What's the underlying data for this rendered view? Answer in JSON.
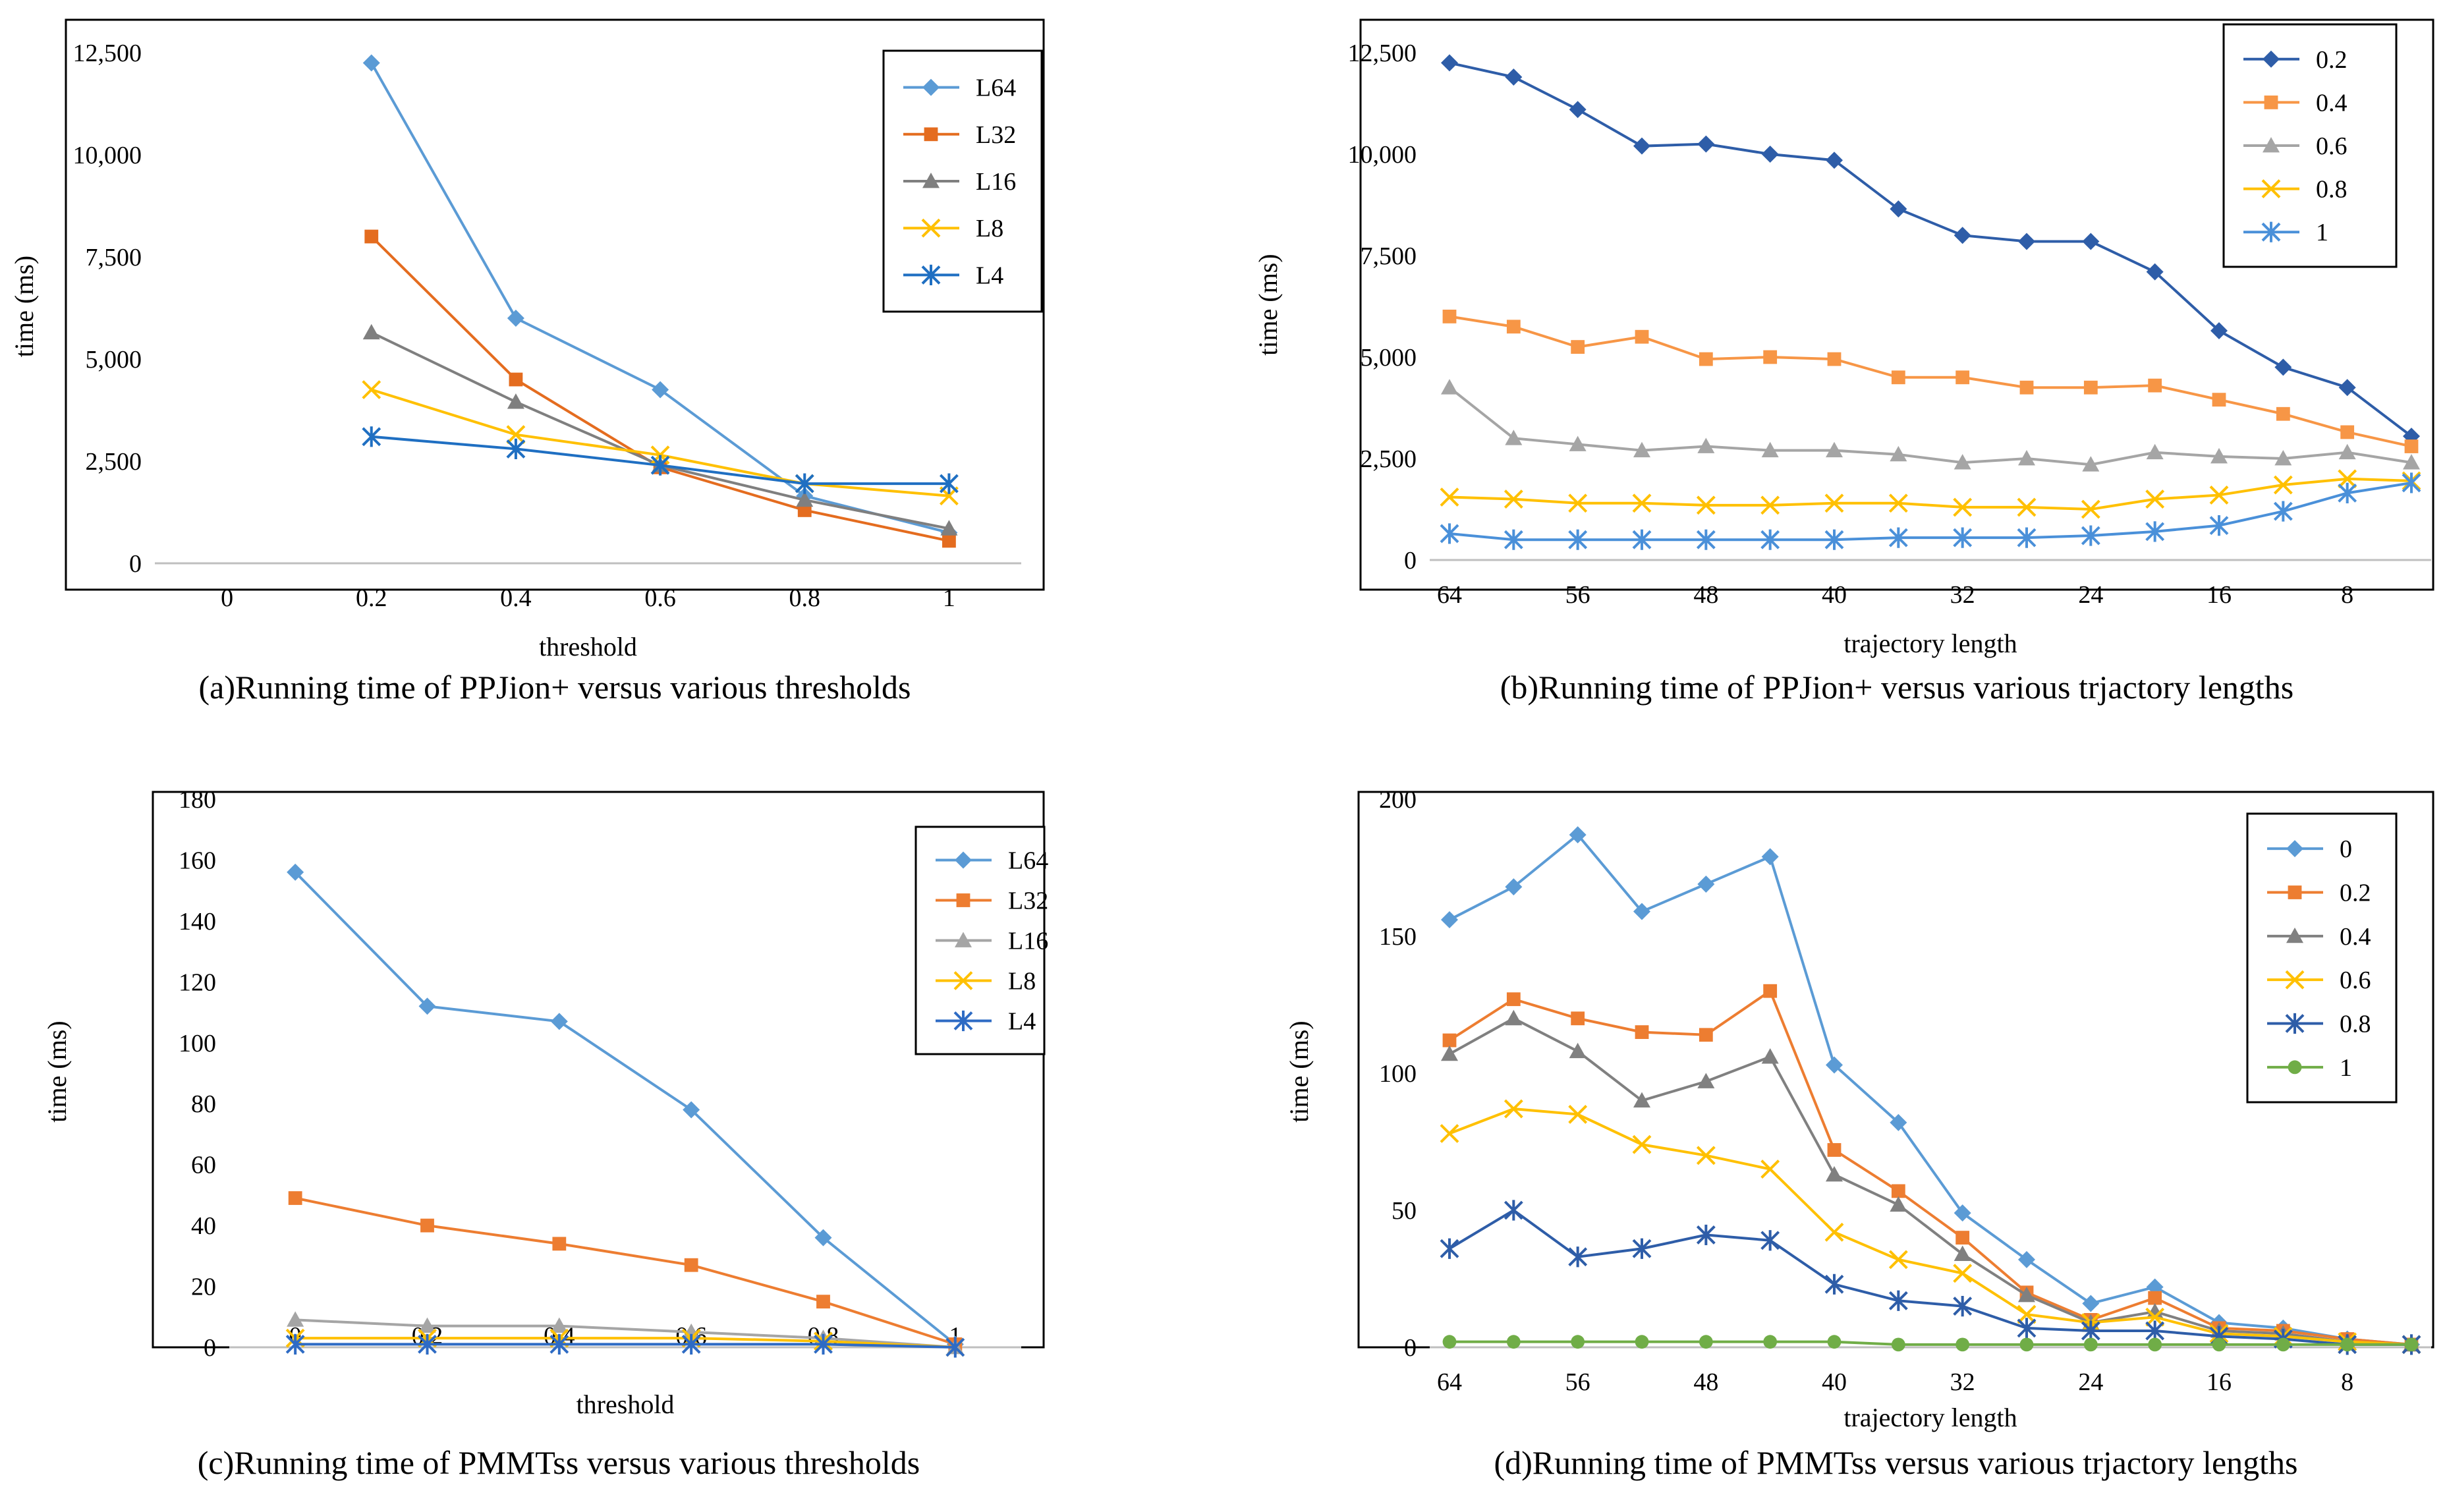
{
  "chart_data": [
    {
      "id": "a",
      "type": "line",
      "caption": "(a)Running time of PPJion+ versus various thresholds",
      "xlabel": "threshold",
      "ylabel": "time (ms)",
      "categories": [
        "0",
        "0.2",
        "0.4",
        "0.6",
        "0.8",
        "1"
      ],
      "ylim": [
        0,
        12500
      ],
      "yticks": [
        "0",
        "2,500",
        "5,000",
        "7,500",
        "10,000",
        "12,500"
      ],
      "legend_position": "top-right",
      "series": [
        {
          "name": "L64",
          "color": "#5b9bd5",
          "marker": "diamond",
          "values": [
            null,
            12250,
            6000,
            4250,
            1650,
            750
          ]
        },
        {
          "name": "L32",
          "color": "#e46c1f",
          "marker": "square",
          "values": [
            null,
            8000,
            4500,
            2350,
            1300,
            550
          ]
        },
        {
          "name": "L16",
          "color": "#7f7f7f",
          "marker": "triangle",
          "values": [
            null,
            5650,
            3950,
            2400,
            1550,
            850
          ]
        },
        {
          "name": "L8",
          "color": "#ffc000",
          "marker": "x",
          "values": [
            null,
            4250,
            3150,
            2650,
            1950,
            1650
          ]
        },
        {
          "name": "L4",
          "color": "#1f6fc2",
          "marker": "star",
          "values": [
            null,
            3100,
            2800,
            2400,
            1950,
            1950
          ]
        }
      ]
    },
    {
      "id": "b",
      "type": "line",
      "caption": "(b)Running time of PPJion+ versus various trjactory lengths",
      "xlabel": "trajectory length",
      "ylabel": "time (ms)",
      "categories": [
        "64",
        "60",
        "56",
        "52",
        "48",
        "44",
        "40",
        "36",
        "32",
        "28",
        "24",
        "20",
        "16",
        "12",
        "8",
        "4"
      ],
      "tick_labels": [
        "64",
        "56",
        "48",
        "40",
        "32",
        "24",
        "16",
        "8"
      ],
      "ylim": [
        0,
        12500
      ],
      "yticks": [
        "0",
        "2,500",
        "5,000",
        "7,500",
        "10,000",
        "12,500"
      ],
      "legend_position": "top-right",
      "series": [
        {
          "name": "0.2",
          "color": "#2e5da8",
          "marker": "diamond",
          "values": [
            12250,
            11900,
            11100,
            10200,
            10250,
            10000,
            9850,
            8650,
            8000,
            7850,
            7850,
            7100,
            5650,
            4750,
            4250,
            3050
          ]
        },
        {
          "name": "0.4",
          "color": "#f79646",
          "marker": "square",
          "values": [
            6000,
            5750,
            5250,
            5500,
            4950,
            5000,
            4950,
            4500,
            4500,
            4250,
            4250,
            4300,
            3950,
            3600,
            3150,
            2800
          ]
        },
        {
          "name": "0.6",
          "color": "#a5a5a5",
          "marker": "triangle",
          "values": [
            4250,
            3000,
            2850,
            2700,
            2800,
            2700,
            2700,
            2600,
            2400,
            2500,
            2350,
            2650,
            2550,
            2500,
            2650,
            2400
          ]
        },
        {
          "name": "0.8",
          "color": "#ffc000",
          "marker": "x",
          "values": [
            1550,
            1500,
            1400,
            1400,
            1350,
            1350,
            1400,
            1400,
            1300,
            1300,
            1250,
            1500,
            1600,
            1850,
            2000,
            1950
          ]
        },
        {
          "name": "1",
          "color": "#4a90d9",
          "marker": "star",
          "values": [
            650,
            500,
            500,
            500,
            500,
            500,
            500,
            550,
            550,
            550,
            600,
            700,
            850,
            1200,
            1650,
            1900
          ]
        }
      ]
    },
    {
      "id": "c",
      "type": "line",
      "caption": "(c)Running time of PMMTss versus various thresholds",
      "xlabel": "threshold",
      "ylabel": "time (ms)",
      "categories": [
        "0",
        "0.2",
        "0.4",
        "0.6",
        "0.8",
        "1"
      ],
      "ylim": [
        0,
        180
      ],
      "yticks": [
        "0",
        "20",
        "40",
        "60",
        "80",
        "100",
        "120",
        "140",
        "160",
        "180"
      ],
      "legend_position": "top-right",
      "series": [
        {
          "name": "L64",
          "color": "#5b9bd5",
          "marker": "diamond",
          "values": [
            156,
            112,
            107,
            78,
            36,
            1
          ]
        },
        {
          "name": "L32",
          "color": "#ed7d31",
          "marker": "square",
          "values": [
            49,
            40,
            34,
            27,
            15,
            1
          ]
        },
        {
          "name": "L16",
          "color": "#a5a5a5",
          "marker": "triangle",
          "values": [
            9,
            7,
            7,
            5,
            3,
            0
          ]
        },
        {
          "name": "L8",
          "color": "#ffc000",
          "marker": "x",
          "values": [
            3,
            3,
            3,
            3,
            2,
            0
          ]
        },
        {
          "name": "L4",
          "color": "#2e6bc4",
          "marker": "star",
          "values": [
            1,
            1,
            1,
            1,
            1,
            0
          ]
        }
      ]
    },
    {
      "id": "d",
      "type": "line",
      "caption": "(d)Running time of PMMTss versus various trjactory lengths",
      "xlabel": "trajectory length",
      "ylabel": "time (ms)",
      "categories": [
        "64",
        "60",
        "56",
        "52",
        "48",
        "44",
        "40",
        "36",
        "32",
        "28",
        "24",
        "20",
        "16",
        "12",
        "8",
        "4"
      ],
      "tick_labels": [
        "64",
        "56",
        "48",
        "40",
        "32",
        "24",
        "16",
        "8"
      ],
      "ylim": [
        0,
        200
      ],
      "yticks": [
        "0",
        "50",
        "100",
        "150",
        "200"
      ],
      "legend_position": "top-right",
      "series": [
        {
          "name": "0",
          "color": "#5b9bd5",
          "marker": "diamond",
          "values": [
            156,
            168,
            187,
            159,
            169,
            179,
            103,
            82,
            49,
            32,
            16,
            22,
            9,
            7,
            3,
            1
          ]
        },
        {
          "name": "0.2",
          "color": "#ed7d31",
          "marker": "square",
          "values": [
            112,
            127,
            120,
            115,
            114,
            130,
            72,
            57,
            40,
            20,
            10,
            18,
            7,
            6,
            3,
            1
          ]
        },
        {
          "name": "0.4",
          "color": "#808080",
          "marker": "triangle",
          "values": [
            107,
            120,
            108,
            90,
            97,
            106,
            63,
            52,
            34,
            19,
            9,
            13,
            6,
            5,
            2,
            1
          ]
        },
        {
          "name": "0.6",
          "color": "#ffc000",
          "marker": "x",
          "values": [
            78,
            87,
            85,
            74,
            70,
            65,
            42,
            32,
            27,
            12,
            9,
            11,
            5,
            4,
            2,
            1
          ]
        },
        {
          "name": "0.8",
          "color": "#2e5da8",
          "marker": "star",
          "values": [
            36,
            50,
            33,
            36,
            41,
            39,
            23,
            17,
            15,
            7,
            6,
            6,
            4,
            3,
            1,
            1
          ]
        },
        {
          "name": "1",
          "color": "#70ad47",
          "marker": "circle",
          "values": [
            2,
            2,
            2,
            2,
            2,
            2,
            2,
            1,
            1,
            1,
            1,
            1,
            1,
            1,
            1,
            1
          ]
        }
      ]
    }
  ]
}
